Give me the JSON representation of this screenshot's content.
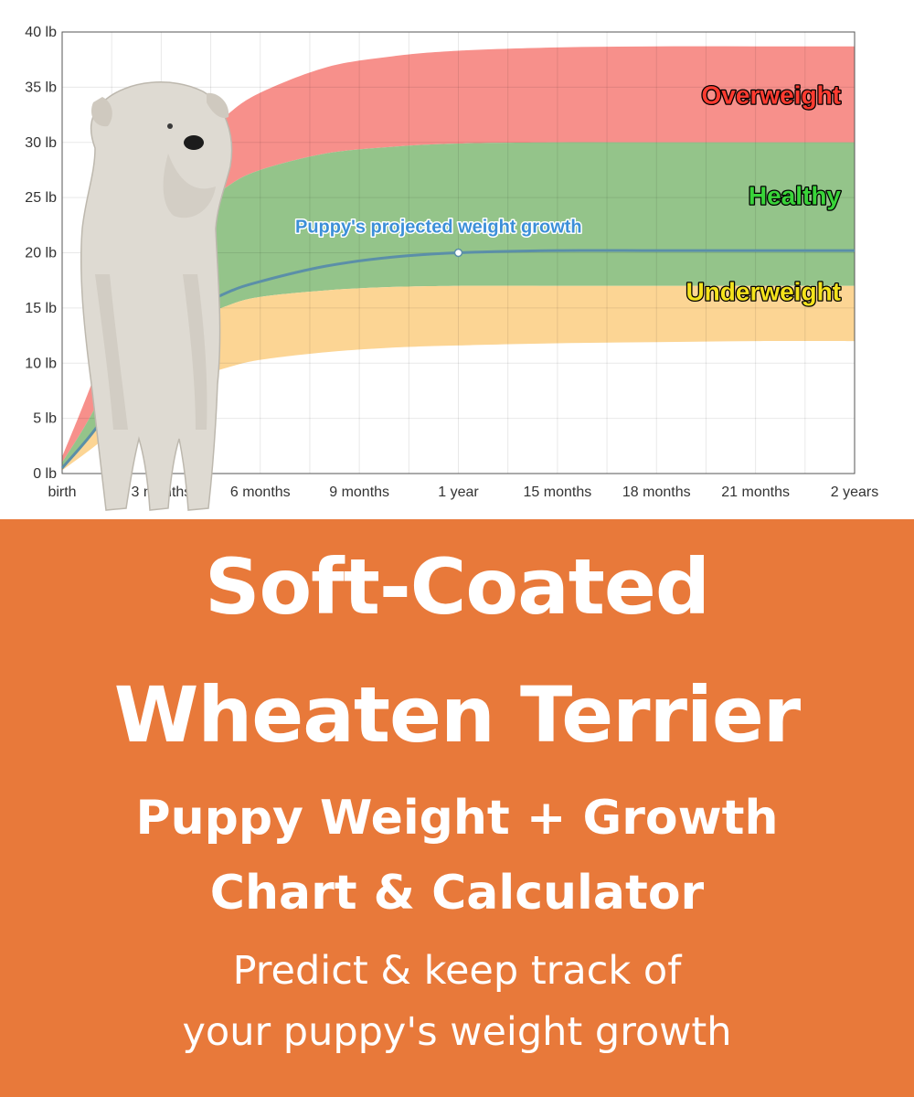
{
  "chart_data": {
    "type": "area",
    "x_unit": "months",
    "xlim": [
      0,
      24
    ],
    "ylim": [
      0,
      40
    ],
    "y_ticks": [
      0,
      5,
      10,
      15,
      20,
      25,
      30,
      35,
      40
    ],
    "y_tick_labels": [
      "0 lb",
      "5 lb",
      "10 lb",
      "15 lb",
      "20 lb",
      "25 lb",
      "30 lb",
      "35 lb",
      "40 lb"
    ],
    "x_ticks": [
      0,
      3,
      6,
      9,
      12,
      15,
      18,
      21,
      24
    ],
    "x_tick_labels": [
      "birth",
      "3 months",
      "6 months",
      "9 months",
      "1 year",
      "15 months",
      "18 months",
      "21 months",
      "2 years"
    ],
    "grid": true,
    "x": [
      0,
      1,
      2,
      3,
      4,
      5,
      6,
      8,
      10,
      12,
      15,
      18,
      21,
      24
    ],
    "series": [
      {
        "name": "Overweight",
        "color": "#f7908b",
        "label_color": "#ff3b30",
        "lower": [
          1.0,
          6.0,
          13.0,
          19.0,
          23.5,
          26.0,
          27.5,
          29.0,
          29.6,
          29.9,
          30.0,
          30.0,
          30.0,
          30.0
        ],
        "upper": [
          1.5,
          9.0,
          18.0,
          25.0,
          29.5,
          32.5,
          34.5,
          36.8,
          37.8,
          38.3,
          38.6,
          38.7,
          38.7,
          38.7
        ]
      },
      {
        "name": "Healthy",
        "color": "#94c48a",
        "label_color": "#39d439",
        "lower": [
          0.6,
          4.0,
          8.0,
          11.5,
          13.8,
          15.2,
          16.0,
          16.6,
          16.9,
          17.0,
          17.0,
          17.0,
          17.0,
          17.0
        ],
        "upper": [
          1.0,
          6.0,
          13.0,
          19.0,
          23.5,
          26.0,
          27.5,
          29.0,
          29.6,
          29.9,
          30.0,
          30.0,
          30.0,
          30.0
        ]
      },
      {
        "name": "Underweight",
        "color": "#fcd594",
        "label_color": "#f4e21c",
        "lower": [
          0.3,
          2.5,
          5.0,
          7.0,
          8.6,
          9.6,
          10.3,
          11.0,
          11.4,
          11.6,
          11.8,
          11.9,
          12.0,
          12.0
        ],
        "upper": [
          0.6,
          4.0,
          8.0,
          11.5,
          13.8,
          15.2,
          16.0,
          16.6,
          16.9,
          17.0,
          17.0,
          17.0,
          17.0,
          17.0
        ]
      }
    ],
    "projection": {
      "name": "Puppy's projected weight growth",
      "color": "#5b8fa8",
      "values": [
        0.5,
        4.0,
        8.5,
        12.3,
        14.8,
        16.4,
        17.4,
        18.8,
        19.6,
        20.0,
        20.2,
        20.2,
        20.2,
        20.2
      ],
      "marker_x": 12
    }
  },
  "banner": {
    "title_line1": "Soft-Coated",
    "title_line2": "Wheaten Terrier",
    "subtitle_line1": "Puppy Weight + Growth",
    "subtitle_line2": "Chart & Calculator",
    "tagline_line1": "Predict & keep track of",
    "tagline_line2": "your puppy's weight growth",
    "background_color": "#e8793a"
  },
  "image": {
    "subject": "soft-coated-wheaten-terrier-photo"
  }
}
